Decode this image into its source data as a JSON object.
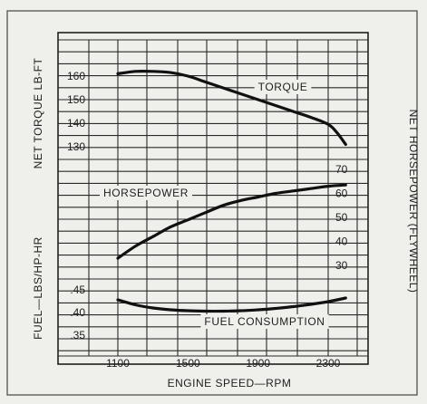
{
  "chart_data": {
    "type": "line",
    "xlabel": "ENGINE SPEED—RPM",
    "x_ticks": [
      "1100",
      "1500",
      "1900",
      "2300"
    ],
    "xlim": [
      1100,
      2400
    ],
    "panels": [
      {
        "id": "torque",
        "ylabel": "NET TORQUE LB-FT",
        "ylim": [
          125,
          165
        ],
        "y_ticks": [
          "160",
          "150",
          "140",
          "130"
        ],
        "series": [
          {
            "name": "TORQUE",
            "x": [
              1100,
              1200,
              1300,
              1400,
              1500,
              1600,
              1700,
              1800,
              1900,
              2000,
              2100,
              2200,
              2300,
              2350,
              2400
            ],
            "y": [
              161,
              162,
              162,
              161.5,
              160,
              157.5,
              155,
              152.5,
              150,
              147.5,
              145,
              142.5,
              139.5,
              136,
              131
            ]
          }
        ]
      },
      {
        "id": "horsepower",
        "ylabel": "NET HORSEPOWER (FLYWHEEL)",
        "ylim": [
          25,
          75
        ],
        "y_ticks": [
          "70",
          "60",
          "50",
          "40",
          "30"
        ],
        "series": [
          {
            "name": "HORSEPOWER",
            "x": [
              1100,
              1200,
              1300,
              1400,
              1500,
              1600,
              1700,
              1800,
              1900,
              2000,
              2100,
              2200,
              2300,
              2400
            ],
            "y": [
              33,
              38,
              42,
              46,
              49,
              52,
              55,
              57,
              58.5,
              60,
              61,
              62,
              63,
              63.5
            ]
          }
        ]
      },
      {
        "id": "fuel",
        "ylabel": "FUEL—LBS/HP-HR",
        "ylim": [
          0.34,
          0.46
        ],
        "y_ticks": [
          ".45",
          ".40",
          ".35"
        ],
        "series": [
          {
            "name": "FUEL CONSUMPTION",
            "x": [
              1100,
              1200,
              1300,
              1400,
              1500,
              1600,
              1700,
              1800,
              1900,
              2000,
              2100,
              2200,
              2300,
              2400
            ],
            "y": [
              0.428,
              0.417,
              0.41,
              0.406,
              0.404,
              0.403,
              0.403,
              0.404,
              0.406,
              0.409,
              0.413,
              0.418,
              0.424,
              0.432
            ]
          }
        ]
      }
    ],
    "grid": true,
    "legend": "none"
  },
  "colors": {
    "background": "#efefeb",
    "ink": "#1e1e1e"
  }
}
